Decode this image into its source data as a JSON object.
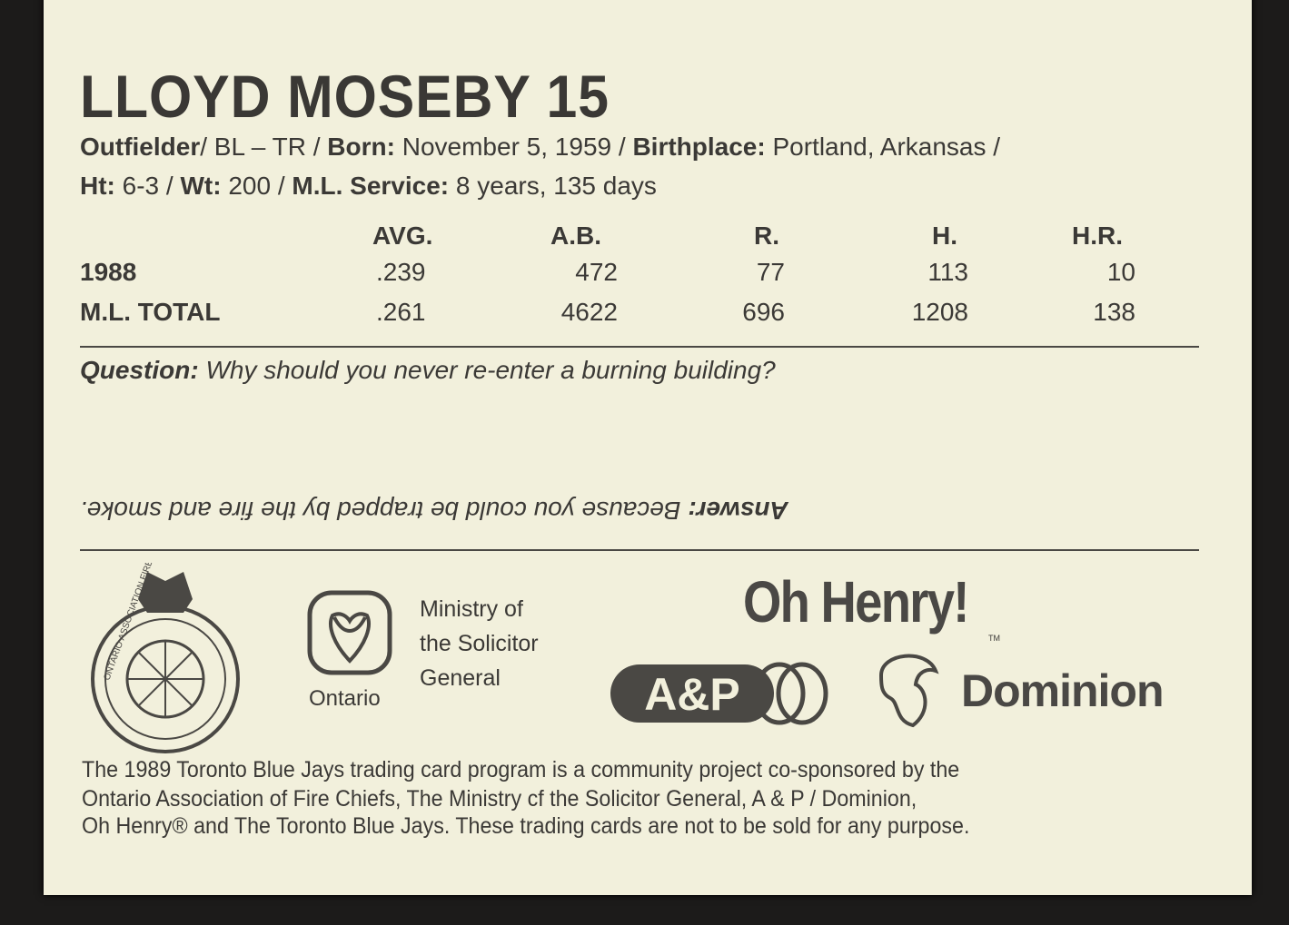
{
  "player": {
    "name_number": "LLOYD MOSEBY 15",
    "bio_line1": [
      {
        "label": "Outfielder",
        "value": ""
      },
      {
        "label": "",
        "value": "/ BL – TR / "
      },
      {
        "label": "Born:",
        "value": " November 5, 1959 / "
      },
      {
        "label": "Birthplace:",
        "value": " Portland, Arkansas /"
      }
    ],
    "bio_line2": [
      {
        "label": "Ht:",
        "value": " 6-3 / "
      },
      {
        "label": "Wt:",
        "value": " 200 / "
      },
      {
        "label": "M.L. Service:",
        "value": " 8 years, 135 days"
      }
    ]
  },
  "stats": {
    "headers": [
      "AVG.",
      "A.B.",
      "R.",
      "H.",
      "H.R."
    ],
    "rows": [
      {
        "label": "1988",
        "values": [
          ".239",
          "472",
          "77",
          "113",
          "10"
        ]
      },
      {
        "label": "M.L. TOTAL",
        "values": [
          ".261",
          "4622",
          "696",
          "1208",
          "138"
        ]
      }
    ]
  },
  "quiz": {
    "question_label": "Question:",
    "question": " Why should you never re-enter a burning building?",
    "answer_label": "Answer:",
    "answer": " Because you could be trapped by the fire and smoke."
  },
  "sponsors": {
    "fire_chiefs_seal": "ONTARIO ASSOCIATION FIRE CHIEFS",
    "ministry_lines": [
      "Ministry of",
      "the Solicitor",
      "General"
    ],
    "ontario": "Ontario",
    "oh_henry": "Oh Henry!",
    "tm": "TM",
    "ap": "A&P",
    "dominion": "Dominion"
  },
  "footer": [
    "The 1989 Toronto Blue Jays trading card program is a community project co-sponsored by the",
    "Ontario Association of Fire Chiefs, The Ministry cf the Solicitor General, A & P / Dominion,",
    "Oh Henry® and The Toronto Blue Jays. These trading cards are not to be sold for any purpose."
  ]
}
